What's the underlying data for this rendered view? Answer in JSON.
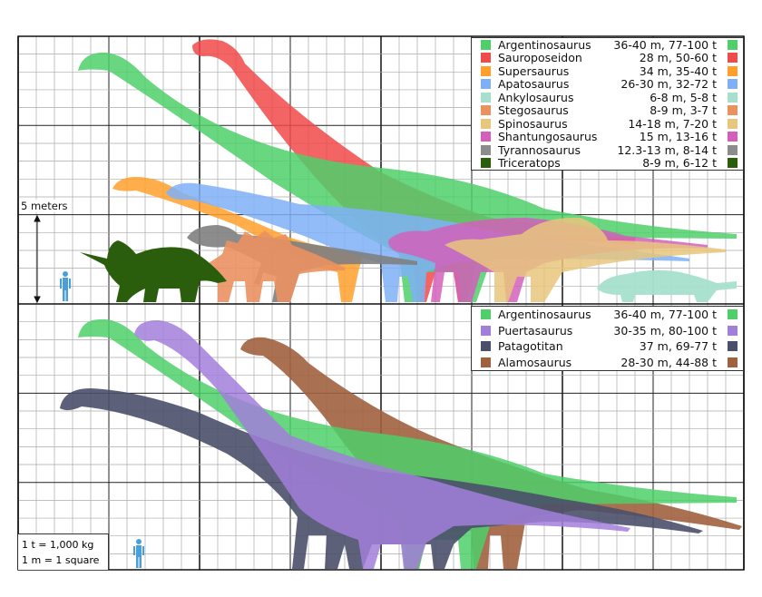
{
  "scale_label": "5 meters",
  "notes": [
    "1 t = 1,000 kg",
    "1 m = 1 square"
  ],
  "legend_top": [
    {
      "name": "Argentinosaurus",
      "stats": "36-40 m, 77-100 t",
      "color": "#4fcf6a"
    },
    {
      "name": "Sauroposeidon",
      "stats": "28 m, 50-60 t",
      "color": "#f14a4a"
    },
    {
      "name": "Supersaurus",
      "stats": "34 m, 35-40 t",
      "color": "#ffa02c"
    },
    {
      "name": "Apatosaurus",
      "stats": "26-30 m, 32-72 t",
      "color": "#7fb0f7"
    },
    {
      "name": "Ankylosaurus",
      "stats": "6-8 m, 5-8 t",
      "color": "#a6e0cc"
    },
    {
      "name": "Stegosaurus",
      "stats": "8-9 m, 3-7 t",
      "color": "#ea9160"
    },
    {
      "name": "Spinosaurus",
      "stats": "14-18 m, 7-20 t",
      "color": "#e8c67c"
    },
    {
      "name": "Shantungosaurus",
      "stats": "15 m, 13-16 t",
      "color": "#d260bb"
    },
    {
      "name": "Tyrannosaurus",
      "stats": "12.3-13 m, 8-14 t",
      "color": "#8c8c8c"
    },
    {
      "name": "Triceratops",
      "stats": "8-9 m, 6-12 t",
      "color": "#2a5d0c"
    }
  ],
  "legend_bottom": [
    {
      "name": "Argentinosaurus",
      "stats": "36-40 m, 77-100 t",
      "color": "#4fcf6a"
    },
    {
      "name": "Puertasaurus",
      "stats": "30-35 m, 80-100 t",
      "color": "#a27fdb"
    },
    {
      "name": "Patagotitan",
      "stats": "37 m, 69-77 t",
      "color": "#4a506a"
    },
    {
      "name": "Alamosaurus",
      "stats": "28-30 m, 44-88 t",
      "color": "#a0623e"
    }
  ],
  "human_color": "#4a9fd8"
}
